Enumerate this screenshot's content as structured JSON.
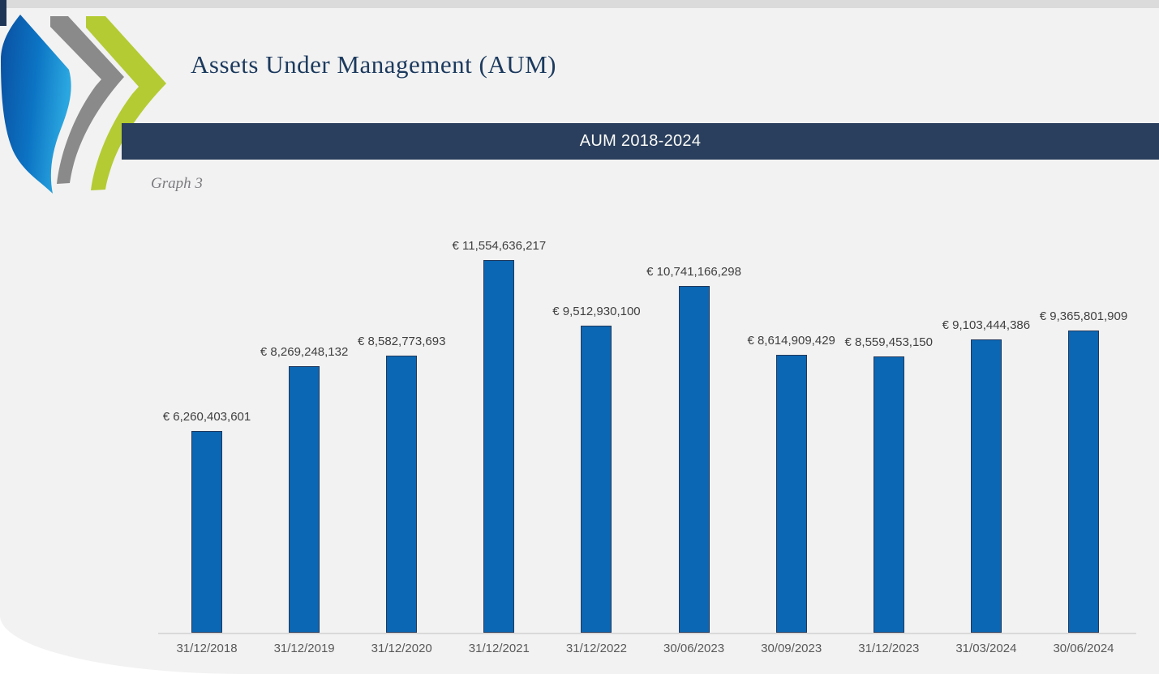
{
  "page": {
    "title": "Assets Under Management (AUM)",
    "caption": "Graph 3"
  },
  "banner": {
    "label": "AUM 2018-2024",
    "background": "#2a3f5d",
    "text_color": "#fbfbf8"
  },
  "logo": {
    "description": "triple-chevron-swoosh-logo",
    "blue": "#0c74c4",
    "blue_dark": "#0a4fa0",
    "blue_light": "#2ba7e0",
    "gray": "#8a8a8a",
    "green": "#b4cb33"
  },
  "chart_data": {
    "type": "bar",
    "title": "AUM 2018-2024",
    "categories": [
      "31/12/2018",
      "31/12/2019",
      "31/12/2020",
      "31/12/2021",
      "31/12/2022",
      "30/06/2023",
      "30/09/2023",
      "31/12/2023",
      "31/03/2024",
      "30/06/2024"
    ],
    "series": [
      {
        "name": "AUM",
        "values": [
          6260403601,
          8269248132,
          8582773693,
          11554636217,
          9512930100,
          10741166298,
          8614909429,
          8559453150,
          9103444386,
          9365801909
        ],
        "labels": [
          "€ 6,260,403,601",
          "€ 8,269,248,132",
          "€ 8,582,773,693",
          "€ 11,554,636,217",
          "€ 9,512,930,100",
          "€ 10,741,166,298",
          "€ 8,614,909,429",
          "€ 8,559,453,150",
          "€ 9,103,444,386",
          "€ 9,365,801,909"
        ]
      }
    ],
    "ylim": [
      0,
      11554636217
    ],
    "grid": false,
    "legend": false,
    "data_labels": true,
    "bar_color": "#0b67b3",
    "bar_border_color": "#22385b",
    "data_label_color": "#3f3f3f",
    "axis_label_color": "#595959",
    "axis_line_color": "#d9d9d9"
  }
}
